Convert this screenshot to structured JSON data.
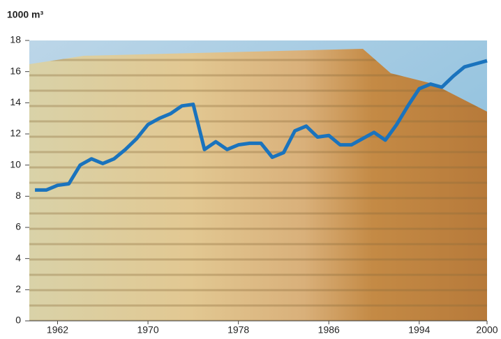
{
  "chart_data": {
    "type": "line",
    "y_label": "1000 m³",
    "x": [
      1960,
      1961,
      1962,
      1963,
      1964,
      1965,
      1966,
      1967,
      1968,
      1969,
      1970,
      1971,
      1972,
      1973,
      1974,
      1975,
      1976,
      1977,
      1978,
      1979,
      1980,
      1981,
      1982,
      1983,
      1984,
      1985,
      1986,
      1987,
      1988,
      1989,
      1990,
      1991,
      1992,
      1993,
      1994,
      1995,
      1996,
      1997,
      1998,
      1999,
      2000
    ],
    "values": [
      8.4,
      8.4,
      8.7,
      8.8,
      10.0,
      10.4,
      10.1,
      10.4,
      11.0,
      11.7,
      12.6,
      13.0,
      13.3,
      13.8,
      13.9,
      11.0,
      11.5,
      11.0,
      11.3,
      11.4,
      11.4,
      10.5,
      10.8,
      12.2,
      12.5,
      11.8,
      11.9,
      11.3,
      11.3,
      11.7,
      12.1,
      11.6,
      12.6,
      13.8,
      14.9,
      15.2,
      15.0,
      15.7,
      16.3,
      16.5,
      16.7
    ],
    "color": "#1a73bd",
    "xlim": [
      1959.5,
      2000
    ],
    "xticks": [
      1962,
      1970,
      1978,
      1986,
      1994,
      2000
    ],
    "ylim": [
      0,
      18
    ],
    "yticks": [
      0,
      2,
      4,
      6,
      8,
      10,
      12,
      14,
      16,
      18
    ]
  }
}
